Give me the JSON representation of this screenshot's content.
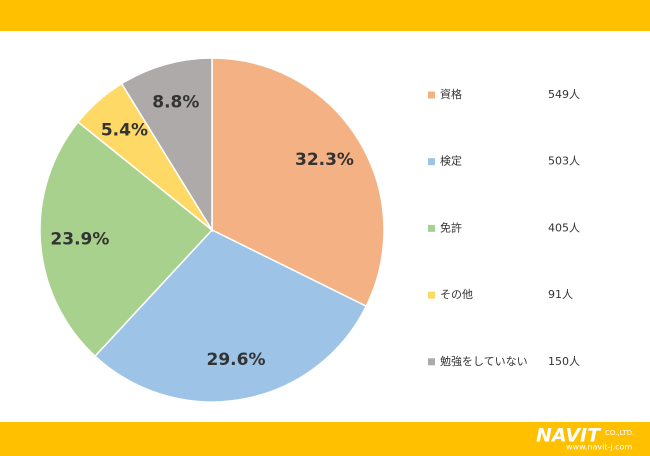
{
  "chart_data": {
    "type": "pie",
    "categories": [
      "資格",
      "検定",
      "免許",
      "その他",
      "勉強をしていない"
    ],
    "values": [
      32.3,
      29.6,
      23.9,
      5.4,
      8.8
    ],
    "value_labels": [
      "32.3%",
      "29.6%",
      "23.9%",
      "5.4%",
      "8.8%"
    ],
    "count_labels": [
      "549人",
      "503人",
      "405人",
      "91人",
      "150人"
    ],
    "colors": [
      "#F4B183",
      "#9DC3E6",
      "#A9D18E",
      "#FFD966",
      "#AEAAAA"
    ]
  },
  "footer": {
    "logo": "NAVIT",
    "company": "CO.,LTD.",
    "url": "www.navit-j.com"
  }
}
